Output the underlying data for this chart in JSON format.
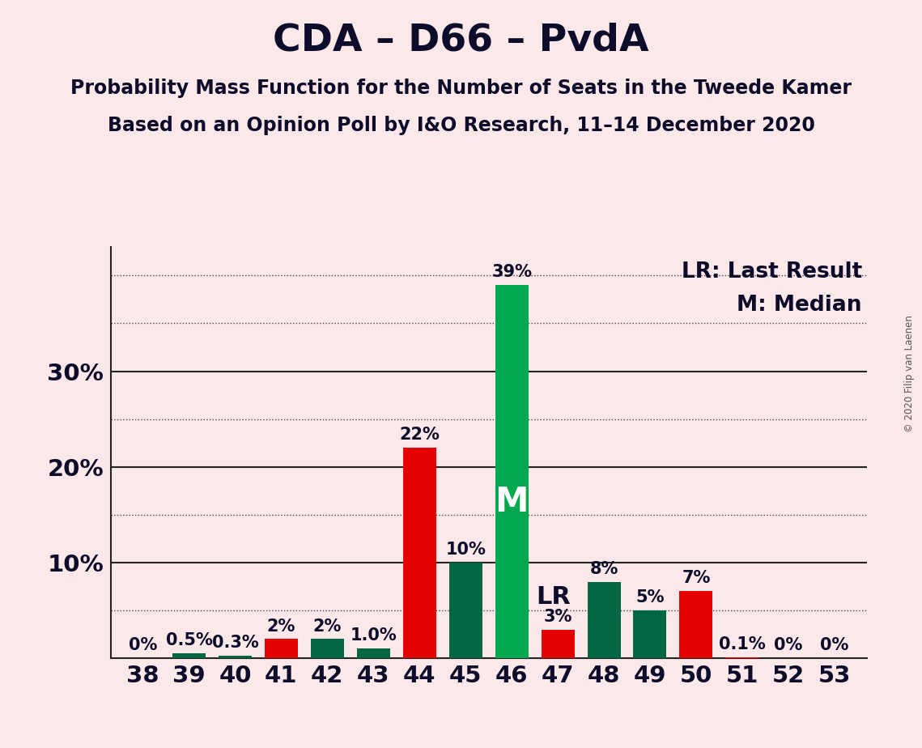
{
  "title": "CDA – D66 – PvdA",
  "subtitle1": "Probability Mass Function for the Number of Seats in the Tweede Kamer",
  "subtitle2": "Based on an Opinion Poll by I&O Research, 11–14 December 2020",
  "copyright": "© 2020 Filip van Laenen",
  "legend_lr": "LR: Last Result",
  "legend_m": "M: Median",
  "background_color": "#fce8e8",
  "seats": [
    38,
    39,
    40,
    41,
    42,
    43,
    44,
    45,
    46,
    47,
    48,
    49,
    50,
    51,
    52,
    53
  ],
  "values": [
    0.0,
    0.5,
    0.3,
    2.0,
    2.0,
    1.0,
    22.0,
    10.0,
    39.0,
    3.0,
    8.0,
    5.0,
    7.0,
    0.1,
    0.0,
    0.0
  ],
  "labels": [
    "0%",
    "0.5%",
    "0.3%",
    "2%",
    "2%",
    "1.0%",
    "22%",
    "10%",
    "39%",
    "3%",
    "8%",
    "5%",
    "7%",
    "0.1%",
    "0%",
    "0%"
  ],
  "bar_colors": [
    "#e30000",
    "#006644",
    "#006644",
    "#e30000",
    "#006644",
    "#006644",
    "#e30000",
    "#006644",
    "#00a84f",
    "#e30000",
    "#006644",
    "#006644",
    "#e30000",
    "#e30000",
    "#e30000",
    "#e30000"
  ],
  "median_seat": 46,
  "lr_seat": 47,
  "ylim": [
    0,
    43
  ],
  "solid_lines": [
    10,
    20,
    30
  ],
  "dotted_lines": [
    5,
    15,
    25,
    35,
    40
  ],
  "bar_width": 0.72,
  "title_fontsize": 34,
  "subtitle_fontsize": 17,
  "label_fontsize": 15,
  "tick_fontsize": 21,
  "legend_fontsize": 19,
  "median_label_fontsize": 30,
  "lr_label_fontsize": 22,
  "text_color": "#0d0d2b"
}
